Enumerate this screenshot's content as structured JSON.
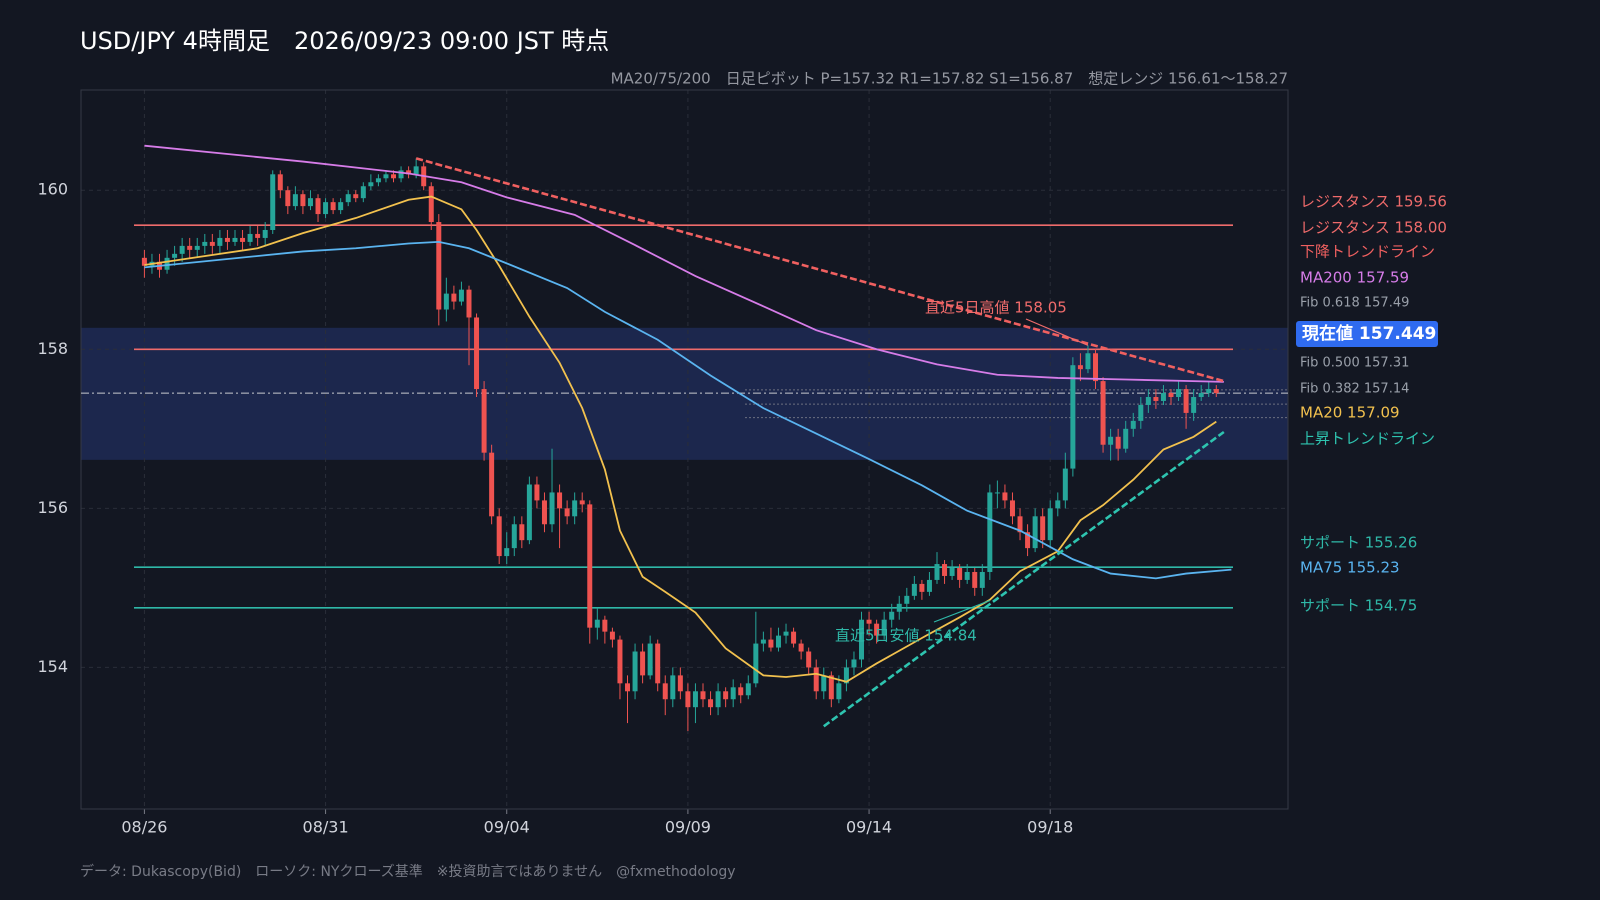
{
  "chart_data": {
    "type": "candlestick",
    "title": "USD/JPY 4時間足　2026/09/23 09:00 JST 時点",
    "subtitle": "MA20/75/200　日足ピボット P=157.32 R1=157.82 S1=156.87　想定レンジ 156.61〜158.27",
    "footer": "データ: Dukascopy(Bid)　ローソク: NYクローズ基準　※投資助言ではありません　@fxmethodology",
    "xlim": [
      -8.4,
      151.5
    ],
    "ylim": [
      152.22,
      161.26
    ],
    "xticks": [
      {
        "value": 0,
        "label": "08/26"
      },
      {
        "value": 24,
        "label": "08/31"
      },
      {
        "value": 48,
        "label": "09/04"
      },
      {
        "value": 72,
        "label": "09/09"
      },
      {
        "value": 96,
        "label": "09/14"
      },
      {
        "value": 120,
        "label": "09/18"
      }
    ],
    "yticks": [
      154,
      156,
      158,
      160
    ],
    "grid": true,
    "up_color": "#26a69a",
    "down_color": "#ef5350",
    "ohlc": [
      [
        159.15,
        159.25,
        158.9,
        159.05
      ],
      [
        159.05,
        159.2,
        158.95,
        159.1
      ],
      [
        159.1,
        159.2,
        158.9,
        159.0
      ],
      [
        159.0,
        159.25,
        158.95,
        159.15
      ],
      [
        159.15,
        159.3,
        159.05,
        159.2
      ],
      [
        159.2,
        159.4,
        159.1,
        159.3
      ],
      [
        159.3,
        159.4,
        159.15,
        159.25
      ],
      [
        159.25,
        159.4,
        159.15,
        159.3
      ],
      [
        159.3,
        159.45,
        159.2,
        159.35
      ],
      [
        159.35,
        159.45,
        159.2,
        159.3
      ],
      [
        159.3,
        159.5,
        159.2,
        159.4
      ],
      [
        159.4,
        159.5,
        159.25,
        159.35
      ],
      [
        159.35,
        159.5,
        159.3,
        159.4
      ],
      [
        159.4,
        159.5,
        159.25,
        159.35
      ],
      [
        159.35,
        159.55,
        159.3,
        159.45
      ],
      [
        159.45,
        159.55,
        159.3,
        159.4
      ],
      [
        159.4,
        159.6,
        159.3,
        159.5
      ],
      [
        159.5,
        160.25,
        159.45,
        160.2
      ],
      [
        160.2,
        160.25,
        159.9,
        160.0
      ],
      [
        160.0,
        160.05,
        159.7,
        159.8
      ],
      [
        159.8,
        160.05,
        159.75,
        159.95
      ],
      [
        159.95,
        160.0,
        159.7,
        159.8
      ],
      [
        159.8,
        160.0,
        159.75,
        159.9
      ],
      [
        159.9,
        159.95,
        159.6,
        159.7
      ],
      [
        159.7,
        159.9,
        159.65,
        159.85
      ],
      [
        159.85,
        159.9,
        159.7,
        159.75
      ],
      [
        159.75,
        159.9,
        159.7,
        159.85
      ],
      [
        159.85,
        160.0,
        159.8,
        159.95
      ],
      [
        159.95,
        160.0,
        159.85,
        159.9
      ],
      [
        159.9,
        160.1,
        159.85,
        160.05
      ],
      [
        160.05,
        160.2,
        160.0,
        160.1
      ],
      [
        160.1,
        160.2,
        160.05,
        160.15
      ],
      [
        160.15,
        160.25,
        160.1,
        160.2
      ],
      [
        160.2,
        160.25,
        160.1,
        160.15
      ],
      [
        160.15,
        160.3,
        160.1,
        160.25
      ],
      [
        160.25,
        160.3,
        160.15,
        160.2
      ],
      [
        160.2,
        160.4,
        160.15,
        160.3
      ],
      [
        160.3,
        160.35,
        160.0,
        160.05
      ],
      [
        160.05,
        160.1,
        159.5,
        159.6
      ],
      [
        159.6,
        159.7,
        158.3,
        158.5
      ],
      [
        158.5,
        158.9,
        158.35,
        158.7
      ],
      [
        158.7,
        158.8,
        158.5,
        158.6
      ],
      [
        158.6,
        158.85,
        158.55,
        158.75
      ],
      [
        158.75,
        158.8,
        157.8,
        158.4
      ],
      [
        158.4,
        158.45,
        157.4,
        157.5
      ],
      [
        157.5,
        157.6,
        156.6,
        156.7
      ],
      [
        156.7,
        156.8,
        155.8,
        155.9
      ],
      [
        155.9,
        156.0,
        155.3,
        155.4
      ],
      [
        155.4,
        155.7,
        155.3,
        155.5
      ],
      [
        155.5,
        155.9,
        155.4,
        155.8
      ],
      [
        155.8,
        155.9,
        155.5,
        155.6
      ],
      [
        155.6,
        156.4,
        155.55,
        156.3
      ],
      [
        156.3,
        156.4,
        156.0,
        156.1
      ],
      [
        156.1,
        156.2,
        155.7,
        155.8
      ],
      [
        155.8,
        156.75,
        155.7,
        156.2
      ],
      [
        156.2,
        156.3,
        155.5,
        156.0
      ],
      [
        156.0,
        156.1,
        155.8,
        155.9
      ],
      [
        155.9,
        156.2,
        155.8,
        156.1
      ],
      [
        156.1,
        156.2,
        155.95,
        156.05
      ],
      [
        156.05,
        156.1,
        154.3,
        154.5
      ],
      [
        154.5,
        154.75,
        154.35,
        154.6
      ],
      [
        154.6,
        154.65,
        154.3,
        154.45
      ],
      [
        154.45,
        154.5,
        154.25,
        154.35
      ],
      [
        154.35,
        154.4,
        153.6,
        153.8
      ],
      [
        153.8,
        153.9,
        153.3,
        153.7
      ],
      [
        153.7,
        154.3,
        153.6,
        154.2
      ],
      [
        154.2,
        154.3,
        153.8,
        153.9
      ],
      [
        153.9,
        154.4,
        153.85,
        154.3
      ],
      [
        154.3,
        154.35,
        153.7,
        153.8
      ],
      [
        153.8,
        153.9,
        153.4,
        153.6
      ],
      [
        153.6,
        154.0,
        153.5,
        153.9
      ],
      [
        153.9,
        154.0,
        153.6,
        153.7
      ],
      [
        153.7,
        153.8,
        153.2,
        153.5
      ],
      [
        153.5,
        153.8,
        153.3,
        153.7
      ],
      [
        153.7,
        153.8,
        153.5,
        153.6
      ],
      [
        153.6,
        153.7,
        153.4,
        153.5
      ],
      [
        153.5,
        153.8,
        153.4,
        153.7
      ],
      [
        153.7,
        153.75,
        153.5,
        153.6
      ],
      [
        153.6,
        153.85,
        153.5,
        153.75
      ],
      [
        153.75,
        153.8,
        153.55,
        153.65
      ],
      [
        153.65,
        153.9,
        153.6,
        153.8
      ],
      [
        153.8,
        154.7,
        153.75,
        154.3
      ],
      [
        154.3,
        154.45,
        154.2,
        154.35
      ],
      [
        154.35,
        154.5,
        154.2,
        154.25
      ],
      [
        154.25,
        154.5,
        154.2,
        154.4
      ],
      [
        154.4,
        154.55,
        154.3,
        154.45
      ],
      [
        154.45,
        154.5,
        154.25,
        154.3
      ],
      [
        154.3,
        154.35,
        154.1,
        154.2
      ],
      [
        154.2,
        154.25,
        153.9,
        154.0
      ],
      [
        154.0,
        154.1,
        153.6,
        153.7
      ],
      [
        153.7,
        154.0,
        153.6,
        153.9
      ],
      [
        153.9,
        153.95,
        153.5,
        153.6
      ],
      [
        153.6,
        153.9,
        153.55,
        153.8
      ],
      [
        153.8,
        154.1,
        153.7,
        154.0
      ],
      [
        154.0,
        154.2,
        153.9,
        154.1
      ],
      [
        154.1,
        154.7,
        154.0,
        154.6
      ],
      [
        154.6,
        154.7,
        154.4,
        154.55
      ],
      [
        154.55,
        154.6,
        154.3,
        154.4
      ],
      [
        154.4,
        154.7,
        154.35,
        154.6
      ],
      [
        154.6,
        154.8,
        154.5,
        154.7
      ],
      [
        154.7,
        154.9,
        154.6,
        154.8
      ],
      [
        154.8,
        155.0,
        154.7,
        154.9
      ],
      [
        154.9,
        155.15,
        154.85,
        155.05
      ],
      [
        155.05,
        155.1,
        154.85,
        154.95
      ],
      [
        154.95,
        155.2,
        154.9,
        155.1
      ],
      [
        155.1,
        155.45,
        155.05,
        155.3
      ],
      [
        155.3,
        155.35,
        155.05,
        155.15
      ],
      [
        155.15,
        155.35,
        155.1,
        155.25
      ],
      [
        155.25,
        155.3,
        155.0,
        155.1
      ],
      [
        155.1,
        155.3,
        155.05,
        155.2
      ],
      [
        155.2,
        155.25,
        154.9,
        155.0
      ],
      [
        155.0,
        155.3,
        154.9,
        155.2
      ],
      [
        155.2,
        156.3,
        155.1,
        156.2
      ],
      [
        156.2,
        156.35,
        156.0,
        156.2
      ],
      [
        156.2,
        156.3,
        156.0,
        156.1
      ],
      [
        156.1,
        156.2,
        155.8,
        155.9
      ],
      [
        155.9,
        156.0,
        155.6,
        155.7
      ],
      [
        155.7,
        155.8,
        155.4,
        155.5
      ],
      [
        155.5,
        156.0,
        155.45,
        155.9
      ],
      [
        155.9,
        156.0,
        155.5,
        155.6
      ],
      [
        155.6,
        156.1,
        155.5,
        156.0
      ],
      [
        156.0,
        156.2,
        155.9,
        156.1
      ],
      [
        156.1,
        156.7,
        156.0,
        156.5
      ],
      [
        156.5,
        157.9,
        156.4,
        157.8
      ],
      [
        157.8,
        157.95,
        157.6,
        157.75
      ],
      [
        157.75,
        158.05,
        157.7,
        157.95
      ],
      [
        157.95,
        158.0,
        157.5,
        157.6
      ],
      [
        157.6,
        157.65,
        156.7,
        156.8
      ],
      [
        156.8,
        157.0,
        156.6,
        156.9
      ],
      [
        156.9,
        157.0,
        156.6,
        156.75
      ],
      [
        156.75,
        157.1,
        156.7,
        157.0
      ],
      [
        157.0,
        157.2,
        156.9,
        157.1
      ],
      [
        157.1,
        157.4,
        157.0,
        157.3
      ],
      [
        157.3,
        157.5,
        157.2,
        157.4
      ],
      [
        157.4,
        157.5,
        157.25,
        157.35
      ],
      [
        157.35,
        157.55,
        157.3,
        157.45
      ],
      [
        157.45,
        157.5,
        157.3,
        157.4
      ],
      [
        157.4,
        157.6,
        157.35,
        157.5
      ],
      [
        157.5,
        157.55,
        157.0,
        157.2
      ],
      [
        157.2,
        157.5,
        157.1,
        157.4
      ],
      [
        157.4,
        157.55,
        157.35,
        157.45
      ],
      [
        157.45,
        157.6,
        157.4,
        157.5
      ],
      [
        157.5,
        157.55,
        157.4,
        157.449
      ]
    ],
    "range": {
      "low": 156.61,
      "high": 158.27,
      "color": "#1e2a55"
    },
    "current": {
      "label": "現在値 157.449",
      "value": 157.449,
      "color": "#2f6bf0"
    },
    "levels": [
      {
        "label": "レジスタンス 159.56",
        "value": 159.56,
        "color": "#ef6b6b"
      },
      {
        "label": "レジスタンス 158.00",
        "value": 158.0,
        "color": "#ef6b6b"
      },
      {
        "label": "サポート 155.26",
        "value": 155.26,
        "color": "#2fb8a8"
      },
      {
        "label": "サポート 154.75",
        "value": 154.75,
        "color": "#2fb8a8"
      }
    ],
    "fib": [
      {
        "label": "Fib 0.618 157.49",
        "value": 157.49
      },
      {
        "label": "Fib 0.500 157.31",
        "value": 157.31
      },
      {
        "label": "Fib 0.382 157.14",
        "value": 157.14
      }
    ],
    "series": [
      {
        "label": "MA20 157.09",
        "color": "#f2c14e",
        "x": [
          0,
          15,
          21,
          28,
          35,
          38,
          42,
          44,
          47,
          51,
          55,
          58,
          61,
          63,
          66,
          69,
          73,
          77,
          82,
          85,
          89,
          93,
          97,
          103,
          108,
          112,
          116,
          121,
          124,
          127,
          131,
          135,
          139,
          142
        ],
        "values": [
          159.06,
          159.27,
          159.46,
          159.65,
          159.88,
          159.92,
          159.76,
          159.5,
          159.05,
          158.41,
          157.83,
          157.26,
          156.49,
          155.72,
          155.14,
          154.95,
          154.69,
          154.24,
          153.9,
          153.88,
          153.92,
          153.82,
          154.05,
          154.37,
          154.63,
          154.85,
          155.21,
          155.46,
          155.85,
          156.04,
          156.36,
          156.74,
          156.9,
          157.09
        ]
      },
      {
        "label": "MA75 155.23",
        "color": "#5ab4f0",
        "x": [
          0,
          21,
          28,
          35,
          39,
          43,
          48,
          56,
          61,
          68,
          75,
          82,
          89,
          96,
          103,
          109,
          116,
          123,
          128,
          134,
          138,
          144
        ],
        "values": [
          159.03,
          159.23,
          159.27,
          159.33,
          159.35,
          159.27,
          159.08,
          158.77,
          158.47,
          158.12,
          157.67,
          157.26,
          156.94,
          156.62,
          156.29,
          155.97,
          155.72,
          155.36,
          155.18,
          155.12,
          155.18,
          155.23
        ]
      },
      {
        "label": "MA200 157.59",
        "color": "#d67ce8",
        "x": [
          0,
          21,
          35,
          42,
          48,
          57,
          65,
          73,
          82,
          89,
          97,
          105,
          113,
          121,
          130,
          143
        ],
        "values": [
          160.56,
          160.36,
          160.21,
          160.1,
          159.91,
          159.69,
          159.31,
          158.92,
          158.54,
          158.24,
          158.0,
          157.81,
          157.68,
          157.64,
          157.62,
          157.59
        ]
      }
    ],
    "trendlines": [
      {
        "label": "下降トレンドライン",
        "color": "#f06060",
        "x": [
          36,
          143
        ],
        "values": [
          160.4,
          157.6
        ]
      },
      {
        "label": "上昇トレンドライン",
        "color": "#2ec4b0",
        "x": [
          90,
          143
        ],
        "values": [
          153.26,
          156.96
        ]
      }
    ],
    "annotations": [
      {
        "text": "直近5日高値 158.05",
        "x": 125,
        "value": 158.05,
        "color": "#ef6b6b"
      },
      {
        "text": "直近5日安値 154.84",
        "x": 112,
        "value": 154.84,
        "color": "#2fb8a8"
      }
    ]
  }
}
